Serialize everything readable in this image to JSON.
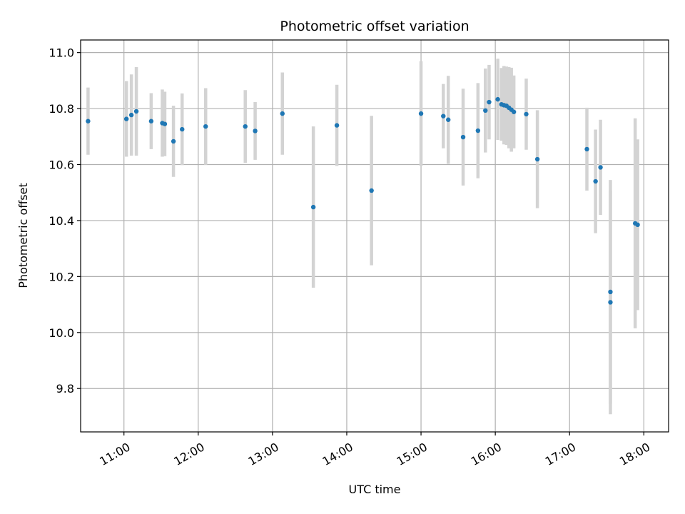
{
  "chart_data": {
    "type": "scatter",
    "title": "Photometric offset variation",
    "xlabel": "UTC time",
    "ylabel": "Photometric offset",
    "x_axis": "time",
    "xlim": [
      "10:25",
      "18:20"
    ],
    "ylim": [
      9.645,
      11.045
    ],
    "grid": true,
    "x_ticks": [
      "11:00",
      "12:00",
      "13:00",
      "14:00",
      "15:00",
      "16:00",
      "17:00",
      "18:00"
    ],
    "y_ticks": [
      "9.8",
      "10.0",
      "10.2",
      "10.4",
      "10.6",
      "10.8",
      "11.0"
    ],
    "colors": {
      "point": "#1f77b4",
      "errorbar": "#d3d3d3",
      "grid": "#b0b0b0"
    },
    "points": [
      {
        "x": "10:31",
        "y": 10.755,
        "err": 0.12
      },
      {
        "x": "11:02",
        "y": 10.763,
        "err": 0.135
      },
      {
        "x": "11:06",
        "y": 10.777,
        "err": 0.145
      },
      {
        "x": "11:10",
        "y": 10.79,
        "err": 0.158
      },
      {
        "x": "11:22",
        "y": 10.755,
        "err": 0.1
      },
      {
        "x": "11:31",
        "y": 10.748,
        "err": 0.12
      },
      {
        "x": "11:33",
        "y": 10.745,
        "err": 0.115
      },
      {
        "x": "11:40",
        "y": 10.683,
        "err": 0.127
      },
      {
        "x": "11:47",
        "y": 10.726,
        "err": 0.128
      },
      {
        "x": "12:06",
        "y": 10.736,
        "err": 0.137
      },
      {
        "x": "12:38",
        "y": 10.736,
        "err": 0.13
      },
      {
        "x": "12:46",
        "y": 10.72,
        "err": 0.103
      },
      {
        "x": "13:08",
        "y": 10.782,
        "err": 0.147
      },
      {
        "x": "13:33",
        "y": 10.448,
        "err": 0.288
      },
      {
        "x": "13:52",
        "y": 10.74,
        "err": 0.145
      },
      {
        "x": "14:20",
        "y": 10.507,
        "err": 0.267
      },
      {
        "x": "15:00",
        "y": 10.782,
        "err": 0.187
      },
      {
        "x": "15:18",
        "y": 10.773,
        "err": 0.115
      },
      {
        "x": "15:22",
        "y": 10.76,
        "err": 0.157
      },
      {
        "x": "15:34",
        "y": 10.698,
        "err": 0.173
      },
      {
        "x": "15:46",
        "y": 10.721,
        "err": 0.17
      },
      {
        "x": "15:52",
        "y": 10.793,
        "err": 0.15
      },
      {
        "x": "15:55",
        "y": 10.823,
        "err": 0.133
      },
      {
        "x": "16:02",
        "y": 10.833,
        "err": 0.145
      },
      {
        "x": "16:05",
        "y": 10.815,
        "err": 0.13
      },
      {
        "x": "16:07",
        "y": 10.812,
        "err": 0.14
      },
      {
        "x": "16:09",
        "y": 10.81,
        "err": 0.14
      },
      {
        "x": "16:11",
        "y": 10.803,
        "err": 0.145
      },
      {
        "x": "16:13",
        "y": 10.796,
        "err": 0.15
      },
      {
        "x": "16:15",
        "y": 10.788,
        "err": 0.13
      },
      {
        "x": "16:25",
        "y": 10.78,
        "err": 0.127
      },
      {
        "x": "16:34",
        "y": 10.619,
        "err": 0.175
      },
      {
        "x": "17:14",
        "y": 10.655,
        "err": 0.148
      },
      {
        "x": "17:21",
        "y": 10.54,
        "err": 0.185
      },
      {
        "x": "17:25",
        "y": 10.59,
        "err": 0.17
      },
      {
        "x": "17:33",
        "y": 10.145,
        "err": 0.4
      },
      {
        "x": "17:33",
        "y": 10.108,
        "err": 0.4
      },
      {
        "x": "17:53",
        "y": 10.39,
        "err": 0.375
      },
      {
        "x": "17:55",
        "y": 10.385,
        "err": 0.305
      }
    ]
  }
}
